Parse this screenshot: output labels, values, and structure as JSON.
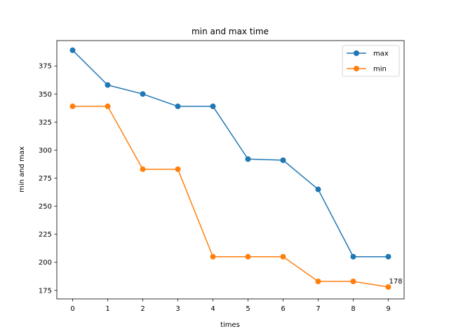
{
  "chart_data": {
    "type": "line",
    "title": "min and max time",
    "xlabel": "times",
    "ylabel": "min and max",
    "x": [
      0,
      1,
      2,
      3,
      4,
      5,
      6,
      7,
      8,
      9
    ],
    "xticks": [
      0,
      1,
      2,
      3,
      4,
      5,
      6,
      7,
      8,
      9
    ],
    "yticks": [
      175,
      200,
      225,
      250,
      275,
      300,
      325,
      350,
      375
    ],
    "xlim": [
      -0.45,
      9.45
    ],
    "ylim": [
      167.4,
      397.6
    ],
    "grid": false,
    "legend_position": "top-right",
    "series": [
      {
        "name": "max",
        "color": "#1f77b4",
        "marker": "circle",
        "values": [
          389,
          358,
          350,
          339,
          339,
          292,
          291,
          265,
          205,
          205
        ]
      },
      {
        "name": "min",
        "color": "#ff7f0e",
        "marker": "circle",
        "values": [
          339,
          339,
          283,
          283,
          205,
          205,
          205,
          183,
          183,
          178
        ]
      }
    ],
    "annotations": [
      {
        "text": "178",
        "x": 9,
        "y": 178
      }
    ]
  }
}
